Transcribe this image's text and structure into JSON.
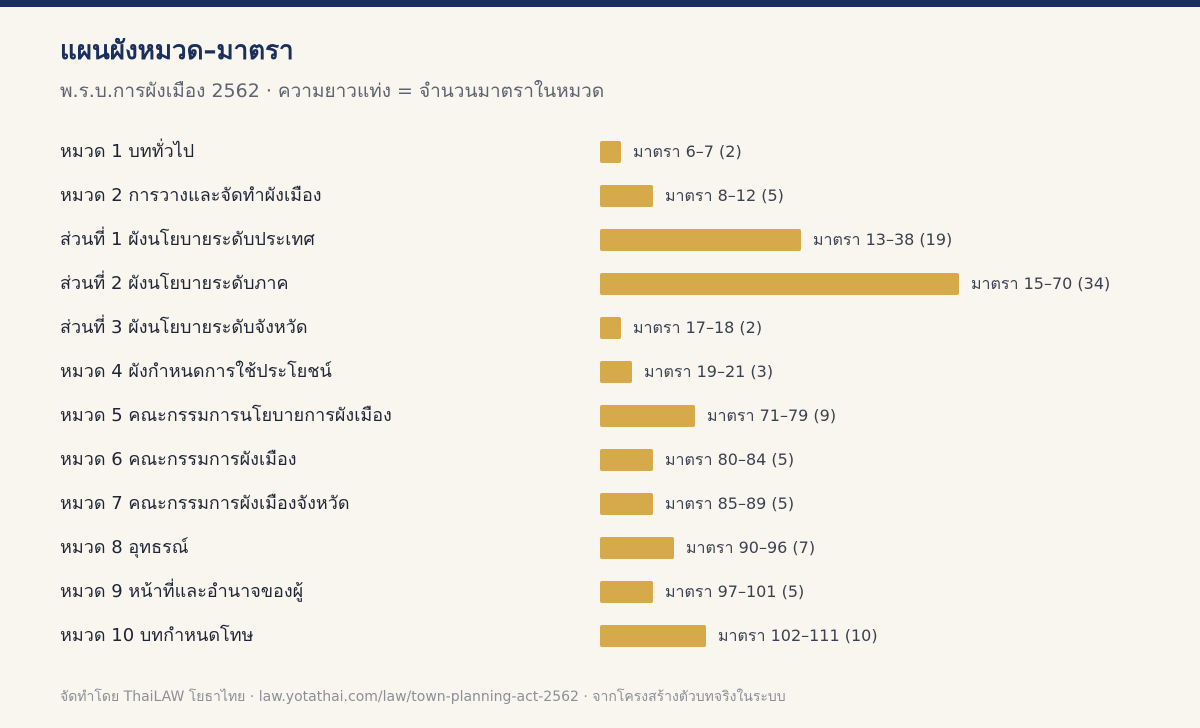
{
  "header": {
    "title": "แผนผังหมวด–มาตรา",
    "subtitle": "พ.ร.บ.การผังเมือง 2562 · ความยาวแท่ง = จำนวนมาตราในหมวด"
  },
  "footer": {
    "text": "จัดทำโดย ThaiLAW โยธาไทย · law.yotathai.com/law/town-planning-act-2562 · จากโครงสร้างตัวบทจริงในระบบ"
  },
  "colors": {
    "accent_bar": "#d6a94a",
    "brand_navy": "#1b2f5c"
  },
  "chart_data": {
    "type": "bar",
    "orientation": "horizontal",
    "categories": [
      "หมวด 1 บททั่วไป",
      "หมวด 2 การวางและจัดทำผังเมือง",
      "ส่วนที่ 1 ผังนโยบายระดับประเทศ",
      "ส่วนที่ 2 ผังนโยบายระดับภาค",
      "ส่วนที่ 3 ผังนโยบายระดับจังหวัด",
      "หมวด 4 ผังกำหนดการใช้ประโยชน์",
      "หมวด 5 คณะกรรมการนโยบายการผังเมือง",
      "หมวด 6 คณะกรรมการผังเมือง",
      "หมวด 7 คณะกรรมการผังเมืองจังหวัด",
      "หมวด 8 อุทธรณ์",
      "หมวด 9 หน้าที่และอำนาจของผู้",
      "หมวด 10 บทกำหนดโทษ"
    ],
    "values": [
      2,
      5,
      19,
      34,
      2,
      3,
      9,
      5,
      5,
      7,
      5,
      10
    ],
    "data_labels": [
      "มาตรา 6–7 (2)",
      "มาตรา 8–12 (5)",
      "มาตรา 13–38 (19)",
      "มาตรา 15–70 (34)",
      "มาตรา 17–18 (2)",
      "มาตรา 19–21 (3)",
      "มาตรา 71–79 (9)",
      "มาตรา 80–84 (5)",
      "มาตรา 85–89 (5)",
      "มาตรา 90–96 (7)",
      "มาตรา 97–101 (5)",
      "มาตรา 102–111 (10)"
    ],
    "xlim": [
      0,
      34
    ],
    "grid": false,
    "legend": "none"
  }
}
